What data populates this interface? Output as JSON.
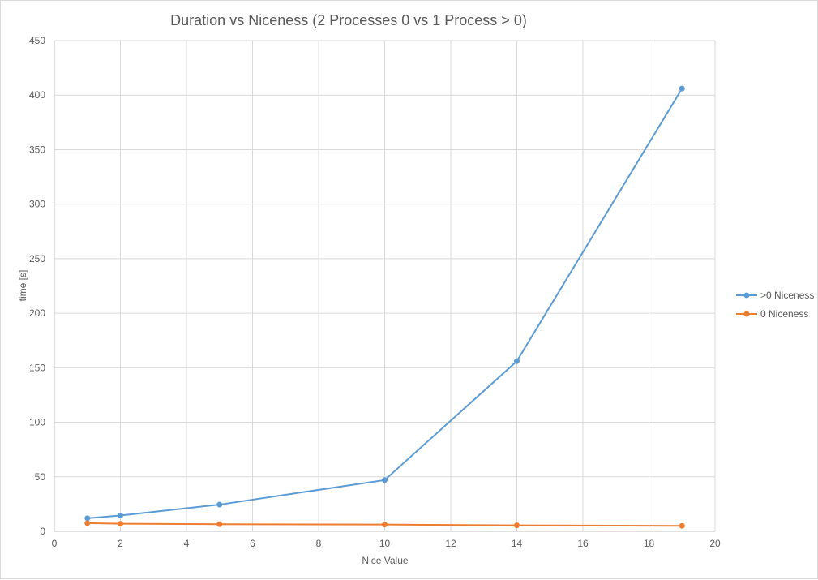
{
  "chart_data": {
    "type": "line",
    "title": "Duration vs Niceness (2 Processes 0 vs 1 Process > 0)",
    "xlabel": "Nice Value",
    "ylabel": "time [s]",
    "xlim": [
      0,
      20
    ],
    "ylim": [
      0,
      450
    ],
    "x_ticks": [
      0,
      2,
      4,
      6,
      8,
      10,
      12,
      14,
      16,
      18,
      20
    ],
    "y_ticks": [
      0,
      50,
      100,
      150,
      200,
      250,
      300,
      350,
      400,
      450
    ],
    "grid": true,
    "legend_position": "right",
    "x": [
      1,
      2,
      5,
      10,
      14,
      19
    ],
    "series": [
      {
        "name": ">0 Niceness",
        "color": "#5b9bd5",
        "values": [
          12,
          14.5,
          24.5,
          47,
          156,
          406
        ]
      },
      {
        "name": "0 Niceness",
        "color": "#ed7d31",
        "values": [
          7.5,
          7,
          6.5,
          6.2,
          5.5,
          5
        ]
      }
    ]
  }
}
